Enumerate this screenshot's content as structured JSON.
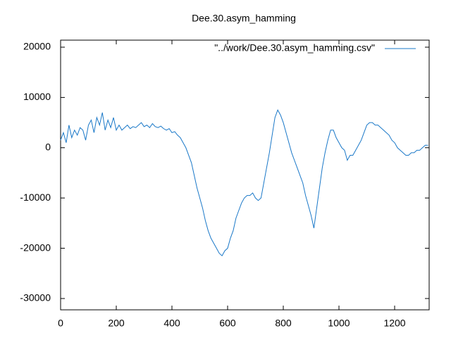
{
  "chart_data": {
    "type": "line",
    "title": "Dee.30.asym_hamming",
    "legend": "top-right",
    "xlim": [
      0,
      1324
    ],
    "ylim": [
      -32250,
      21400
    ],
    "xticks": [
      0,
      200,
      400,
      600,
      800,
      1000,
      1200
    ],
    "yticks": [
      -30000,
      -20000,
      -10000,
      0,
      10000,
      20000
    ],
    "x": [
      0,
      10,
      20,
      30,
      40,
      50,
      60,
      70,
      80,
      90,
      100,
      110,
      120,
      130,
      140,
      150,
      160,
      170,
      180,
      190,
      200,
      210,
      220,
      230,
      240,
      250,
      260,
      270,
      280,
      290,
      300,
      310,
      320,
      330,
      340,
      350,
      360,
      370,
      380,
      390,
      400,
      410,
      420,
      430,
      440,
      450,
      460,
      470,
      480,
      490,
      500,
      510,
      520,
      530,
      540,
      550,
      560,
      570,
      580,
      590,
      600,
      610,
      620,
      630,
      640,
      650,
      660,
      670,
      680,
      690,
      700,
      710,
      720,
      730,
      740,
      750,
      760,
      770,
      780,
      790,
      800,
      810,
      820,
      830,
      840,
      850,
      860,
      870,
      880,
      890,
      900,
      910,
      920,
      930,
      940,
      950,
      960,
      970,
      980,
      990,
      1000,
      1010,
      1020,
      1030,
      1040,
      1050,
      1060,
      1070,
      1080,
      1090,
      1100,
      1110,
      1120,
      1130,
      1140,
      1150,
      1160,
      1170,
      1180,
      1190,
      1200,
      1210,
      1220,
      1230,
      1240,
      1250,
      1260,
      1270,
      1280,
      1290,
      1300,
      1310,
      1320
    ],
    "series": [
      {
        "name": "\"../work/Dee.30.asym_hamming.csv\"",
        "color": "#1a78c8",
        "values": [
          1500,
          3000,
          1000,
          4500,
          2000,
          3500,
          2500,
          4000,
          3500,
          1500,
          4500,
          5500,
          3000,
          6000,
          4500,
          7000,
          3500,
          5500,
          4000,
          6000,
          3500,
          4500,
          3500,
          4000,
          4500,
          3800,
          4200,
          4000,
          4500,
          5000,
          4200,
          4500,
          4000,
          4800,
          4200,
          4000,
          4300,
          3800,
          3500,
          3800,
          3000,
          3200,
          2500,
          2000,
          1000,
          0,
          -1500,
          -3000,
          -5500,
          -8000,
          -10000,
          -12000,
          -14500,
          -16500,
          -18000,
          -19000,
          -20000,
          -21000,
          -21500,
          -20500,
          -20000,
          -18000,
          -16500,
          -14000,
          -12500,
          -11000,
          -10000,
          -9500,
          -9500,
          -9000,
          -10000,
          -10500,
          -10000,
          -7000,
          -4000,
          -1000,
          2500,
          6000,
          7500,
          6500,
          5000,
          3000,
          1000,
          -1000,
          -2500,
          -4000,
          -5500,
          -7000,
          -9500,
          -11500,
          -13500,
          -16000,
          -12000,
          -8000,
          -4000,
          -1000,
          1500,
          3500,
          3500,
          2000,
          1000,
          0,
          -500,
          -2500,
          -1500,
          -1500,
          -500,
          500,
          1500,
          3000,
          4500,
          5000,
          5000,
          4500,
          4500,
          4000,
          3500,
          3000,
          2500,
          1500,
          1000,
          0,
          -500,
          -1000,
          -1500,
          -1500,
          -1000,
          -1000,
          -500,
          -500,
          0,
          500,
          500
        ]
      }
    ]
  }
}
